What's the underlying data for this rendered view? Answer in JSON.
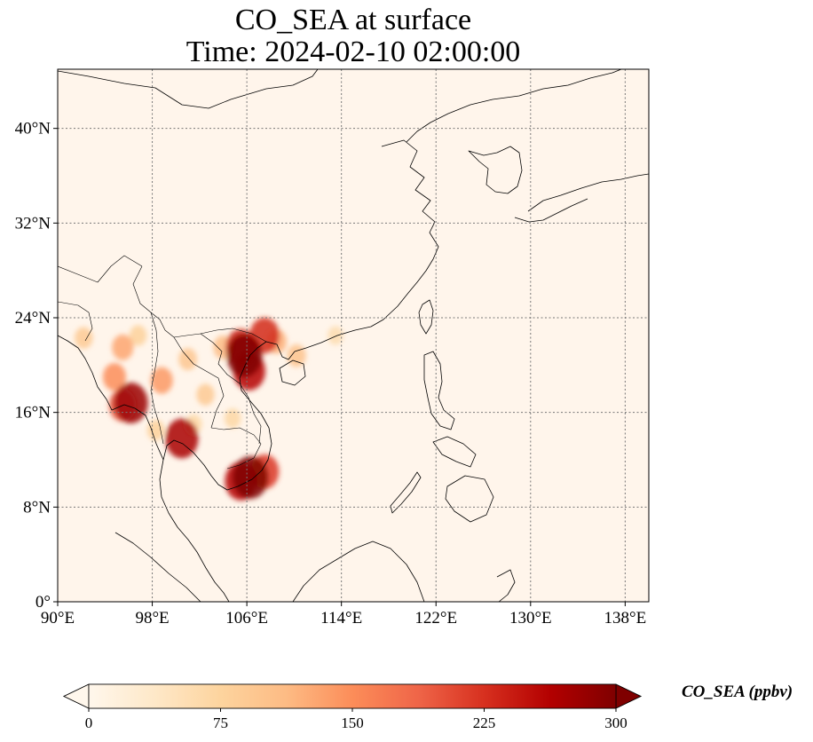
{
  "title": {
    "line1": "CO_SEA at surface",
    "line2": "Time: 2024-02-10 02:00:00"
  },
  "map": {
    "extent": {
      "lon": [
        90,
        140
      ],
      "lat": [
        0,
        45
      ]
    },
    "lon_ticks": [
      {
        "value": 90,
        "label": "90°E"
      },
      {
        "value": 98,
        "label": "98°E"
      },
      {
        "value": 106,
        "label": "106°E"
      },
      {
        "value": 114,
        "label": "114°E"
      },
      {
        "value": 122,
        "label": "122°E"
      },
      {
        "value": 130,
        "label": "130°E"
      },
      {
        "value": 138,
        "label": "138°E"
      }
    ],
    "lat_ticks": [
      {
        "value": 0,
        "label": "0°"
      },
      {
        "value": 8,
        "label": "8°N"
      },
      {
        "value": 16,
        "label": "16°N"
      },
      {
        "value": 24,
        "label": "24°N"
      },
      {
        "value": 32,
        "label": "32°N"
      },
      {
        "value": 40,
        "label": "40°N"
      }
    ],
    "gridlines": true,
    "background_color": "#fff5eb",
    "colormap": "OrRd",
    "hotspots": [
      {
        "lon": 105.8,
        "lat": 20.8,
        "value": 300
      },
      {
        "lon": 106.2,
        "lat": 19.5,
        "value": 260
      },
      {
        "lon": 105.5,
        "lat": 21.5,
        "value": 240
      },
      {
        "lon": 107.5,
        "lat": 22.5,
        "value": 230
      },
      {
        "lon": 106.3,
        "lat": 10.5,
        "value": 300
      },
      {
        "lon": 105.5,
        "lat": 10.2,
        "value": 260
      },
      {
        "lon": 107.5,
        "lat": 11.0,
        "value": 220
      },
      {
        "lon": 96.2,
        "lat": 16.8,
        "value": 280
      },
      {
        "lon": 95.5,
        "lat": 16.6,
        "value": 200
      },
      {
        "lon": 100.5,
        "lat": 13.8,
        "value": 270
      },
      {
        "lon": 94.8,
        "lat": 19.0,
        "value": 150
      },
      {
        "lon": 95.5,
        "lat": 21.5,
        "value": 130
      },
      {
        "lon": 98.8,
        "lat": 18.7,
        "value": 140
      },
      {
        "lon": 102.5,
        "lat": 17.5,
        "value": 90
      },
      {
        "lon": 104.0,
        "lat": 21.5,
        "value": 110
      },
      {
        "lon": 108.5,
        "lat": 22.0,
        "value": 120
      },
      {
        "lon": 110.2,
        "lat": 20.8,
        "value": 100
      },
      {
        "lon": 101.0,
        "lat": 20.5,
        "value": 95
      },
      {
        "lon": 96.8,
        "lat": 22.5,
        "value": 80
      },
      {
        "lon": 104.8,
        "lat": 15.5,
        "value": 70
      },
      {
        "lon": 101.5,
        "lat": 15.0,
        "value": 70
      },
      {
        "lon": 98.3,
        "lat": 14.5,
        "value": 80
      },
      {
        "lon": 92.2,
        "lat": 22.3,
        "value": 90
      },
      {
        "lon": 113.5,
        "lat": 22.5,
        "value": 60
      }
    ]
  },
  "colorbar": {
    "min": 0,
    "max": 300,
    "ticks": [
      {
        "value": 0,
        "label": "0"
      },
      {
        "value": 75,
        "label": "75"
      },
      {
        "value": 150,
        "label": "150"
      },
      {
        "value": 225,
        "label": "225"
      },
      {
        "value": 300,
        "label": "300"
      }
    ],
    "label": "CO_SEA (ppbv)",
    "extend": "both",
    "colors": [
      "#fff7ec",
      "#fee8c8",
      "#fdd49e",
      "#fdbb84",
      "#fc8d59",
      "#ef6548",
      "#d7301f",
      "#b30000",
      "#7f0000"
    ]
  }
}
